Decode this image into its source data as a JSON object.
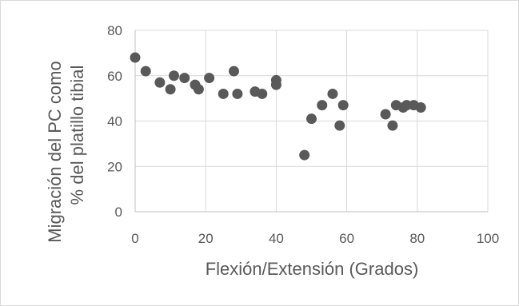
{
  "chart_data": {
    "type": "scatter",
    "xlabel": "Flexión/Extensión (Grados)",
    "ylabel_line1": "Migración  del PC como",
    "ylabel_line2": "% del platillo tibial",
    "xlim": [
      0,
      100
    ],
    "ylim": [
      0,
      80
    ],
    "x_ticks": [
      0,
      20,
      40,
      60,
      80,
      100
    ],
    "y_ticks": [
      0,
      20,
      40,
      60,
      80
    ],
    "grid": true,
    "marker_color": "#595959",
    "points": [
      {
        "x": 0,
        "y": 68
      },
      {
        "x": 3,
        "y": 62
      },
      {
        "x": 7,
        "y": 57
      },
      {
        "x": 10,
        "y": 54
      },
      {
        "x": 11,
        "y": 60
      },
      {
        "x": 14,
        "y": 59
      },
      {
        "x": 17,
        "y": 56
      },
      {
        "x": 18,
        "y": 54
      },
      {
        "x": 21,
        "y": 59
      },
      {
        "x": 25,
        "y": 52
      },
      {
        "x": 28,
        "y": 62
      },
      {
        "x": 29,
        "y": 52
      },
      {
        "x": 34,
        "y": 53
      },
      {
        "x": 36,
        "y": 52
      },
      {
        "x": 40,
        "y": 58
      },
      {
        "x": 40,
        "y": 56
      },
      {
        "x": 48,
        "y": 25
      },
      {
        "x": 50,
        "y": 41
      },
      {
        "x": 53,
        "y": 47
      },
      {
        "x": 56,
        "y": 52
      },
      {
        "x": 58,
        "y": 38
      },
      {
        "x": 59,
        "y": 47
      },
      {
        "x": 71,
        "y": 43
      },
      {
        "x": 73,
        "y": 38
      },
      {
        "x": 74,
        "y": 47
      },
      {
        "x": 76,
        "y": 46
      },
      {
        "x": 77,
        "y": 47
      },
      {
        "x": 79,
        "y": 47
      },
      {
        "x": 81,
        "y": 46
      }
    ]
  }
}
